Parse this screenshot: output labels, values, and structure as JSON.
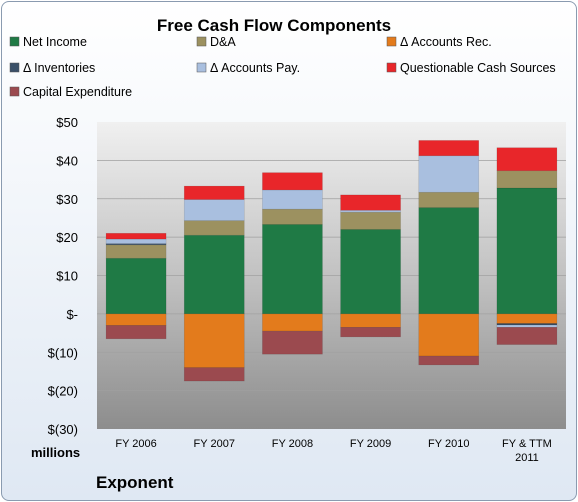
{
  "chart_data": {
    "type": "bar",
    "stacked": true,
    "title": "Free Cash Flow Components",
    "units_label": "millions",
    "footer": "Exponent",
    "categories": [
      "FY 2006",
      "FY 2007",
      "FY 2008",
      "FY 2009",
      "FY 2010",
      "FY & TTM 2011"
    ],
    "y_ticks": [
      "$50",
      "$40",
      "$30",
      "$20",
      "$10",
      "$-",
      "$(10)",
      "$(20)",
      "$(30)"
    ],
    "ylim": [
      -30,
      50
    ],
    "grid": true,
    "legend_position": "top",
    "series": [
      {
        "name": "Net Income",
        "color": "#1f7a45",
        "values": [
          14.5,
          20.5,
          23.3,
          22.0,
          27.7,
          32.8
        ]
      },
      {
        "name": "D&A",
        "color": "#9c9160",
        "values": [
          3.5,
          3.8,
          4.0,
          4.5,
          4.0,
          4.5
        ]
      },
      {
        "name": "Δ Accounts Rec.",
        "color": "#e37b1c",
        "values": [
          -3.0,
          -14.0,
          -4.5,
          -3.5,
          -11.0,
          -2.5
        ]
      },
      {
        "name": "Δ Inventories",
        "color": "#3a5068",
        "values": [
          0.3,
          0.0,
          0.0,
          0.0,
          0.0,
          -0.4
        ]
      },
      {
        "name": "Δ Accounts Pay.",
        "color": "#a9bfdf",
        "values": [
          1.2,
          5.5,
          5.0,
          0.5,
          9.5,
          -0.6
        ]
      },
      {
        "name": "Questionable Cash Sources",
        "color": "#e8262a",
        "values": [
          1.5,
          3.5,
          4.5,
          4.0,
          4.0,
          6.0
        ]
      },
      {
        "name": "Capital Expenditure",
        "color": "#9b4a4f",
        "values": [
          -3.5,
          -3.5,
          -6.0,
          -2.5,
          -2.3,
          -4.5
        ]
      }
    ]
  }
}
